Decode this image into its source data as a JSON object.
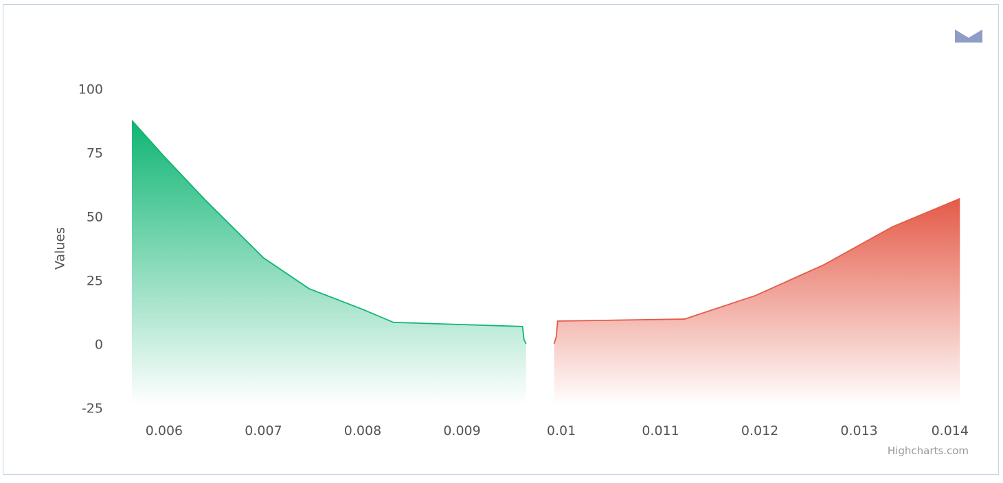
{
  "chart_data": {
    "type": "area",
    "y_axis_label": "Values",
    "credit": "Highcharts.com",
    "xlim": [
      0.005675,
      0.01402
    ],
    "xticks": [
      0.006,
      0.007,
      0.008,
      0.009,
      0.01,
      0.011,
      0.012,
      0.013,
      0.014
    ],
    "ylim": [
      -25,
      100
    ],
    "yticks": [
      -25,
      0,
      25,
      50,
      75,
      100
    ],
    "grid": false,
    "series": [
      {
        "color": "#0fb573",
        "x": [
          0.005675,
          0.006,
          0.00642,
          0.007,
          0.00746,
          0.008,
          0.00831,
          0.00961,
          0.009624,
          0.009645
        ],
        "values": [
          88,
          73.9,
          56.6,
          34.2,
          22.1,
          14,
          8.9,
          7.3,
          2.2,
          0.5
        ]
      },
      {
        "color": "#e45a47",
        "x": [
          0.009928,
          0.009949,
          0.009963,
          0.011242,
          0.011955,
          0.012646,
          0.013338,
          0.014015
        ],
        "values": [
          0.5,
          3.2,
          9.4,
          10.2,
          19.4,
          31.5,
          46.4,
          57.4
        ]
      }
    ]
  }
}
